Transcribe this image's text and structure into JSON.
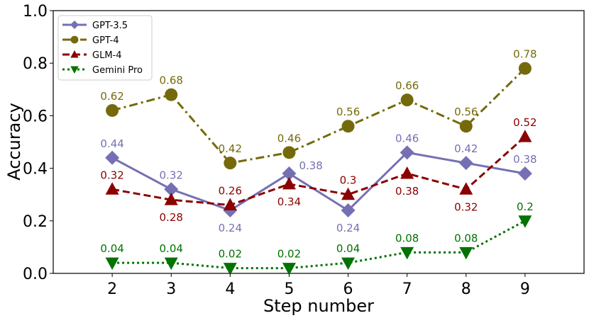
{
  "chart_data": {
    "type": "line",
    "title": "",
    "xlabel": "Step number",
    "ylabel": "Accuracy",
    "categories": [
      2,
      3,
      4,
      5,
      6,
      7,
      8,
      9
    ],
    "xlim": [
      1.0,
      10.0
    ],
    "ylim": [
      0.0,
      1.0
    ],
    "yticks": [
      "0.0",
      "0.2",
      "0.4",
      "0.6",
      "0.8",
      "1.0"
    ],
    "legend_position": "top-left",
    "grid": false,
    "series": [
      {
        "name": "GPT-3.5",
        "values": [
          0.44,
          0.32,
          0.24,
          0.38,
          0.24,
          0.46,
          0.42,
          0.38
        ],
        "labels": [
          "0.44",
          "0.32",
          "0.24",
          "0.38",
          "0.24",
          "0.46",
          "0.42",
          "0.38"
        ],
        "color": "#7570b3",
        "line_style": "solid",
        "marker": "diamond"
      },
      {
        "name": "GPT-4",
        "values": [
          0.62,
          0.68,
          0.42,
          0.46,
          0.56,
          0.66,
          0.56,
          0.78
        ],
        "labels": [
          "0.62",
          "0.68",
          "0.42",
          "0.46",
          "0.56",
          "0.66",
          "0.56",
          "0.78"
        ],
        "color": "#756a0b",
        "line_style": "dashdot",
        "marker": "circle"
      },
      {
        "name": "GLM-4",
        "values": [
          0.32,
          0.28,
          0.26,
          0.34,
          0.3,
          0.38,
          0.32,
          0.52
        ],
        "labels": [
          "0.32",
          "0.28",
          "0.26",
          "0.34",
          "0.3",
          "0.38",
          "0.32",
          "0.52"
        ],
        "color": "#8b0000",
        "line_style": "dashed",
        "marker": "triangle-up"
      },
      {
        "name": "Gemini Pro",
        "values": [
          0.04,
          0.04,
          0.02,
          0.02,
          0.04,
          0.08,
          0.08,
          0.2
        ],
        "labels": [
          "0.04",
          "0.04",
          "0.02",
          "0.02",
          "0.04",
          "0.08",
          "0.08",
          "0.2"
        ],
        "color": "#007300",
        "line_style": "dotted",
        "marker": "triangle-down"
      }
    ]
  }
}
